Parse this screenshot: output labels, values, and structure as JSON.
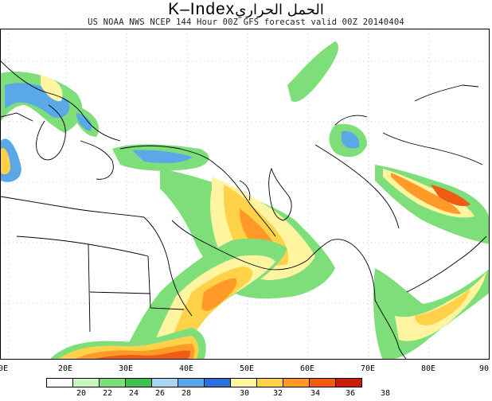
{
  "title": {
    "main": "K–Index",
    "arabic": "الحمل الحراري"
  },
  "subtitle": "US NOAA NWS NCEP 144 Hour 00Z GFS forecast valid 00Z 20140404",
  "x_axis_labels": [
    "0E",
    "20E",
    "30E",
    "40E",
    "50E",
    "60E",
    "70E",
    "80E",
    "90"
  ],
  "legend": {
    "labels": [
      "20",
      "22",
      "24",
      "26",
      "28",
      "30",
      "32",
      "34",
      "36",
      "38"
    ],
    "colors": [
      "#ffffff",
      "#c8f5c0",
      "#7ede7a",
      "#3fbf52",
      "#a8d4f5",
      "#5aa8e8",
      "#2d6fd8",
      "#fff4a0",
      "#ffd24a",
      "#ff9a28",
      "#f05a14",
      "#c81e0a"
    ]
  }
}
